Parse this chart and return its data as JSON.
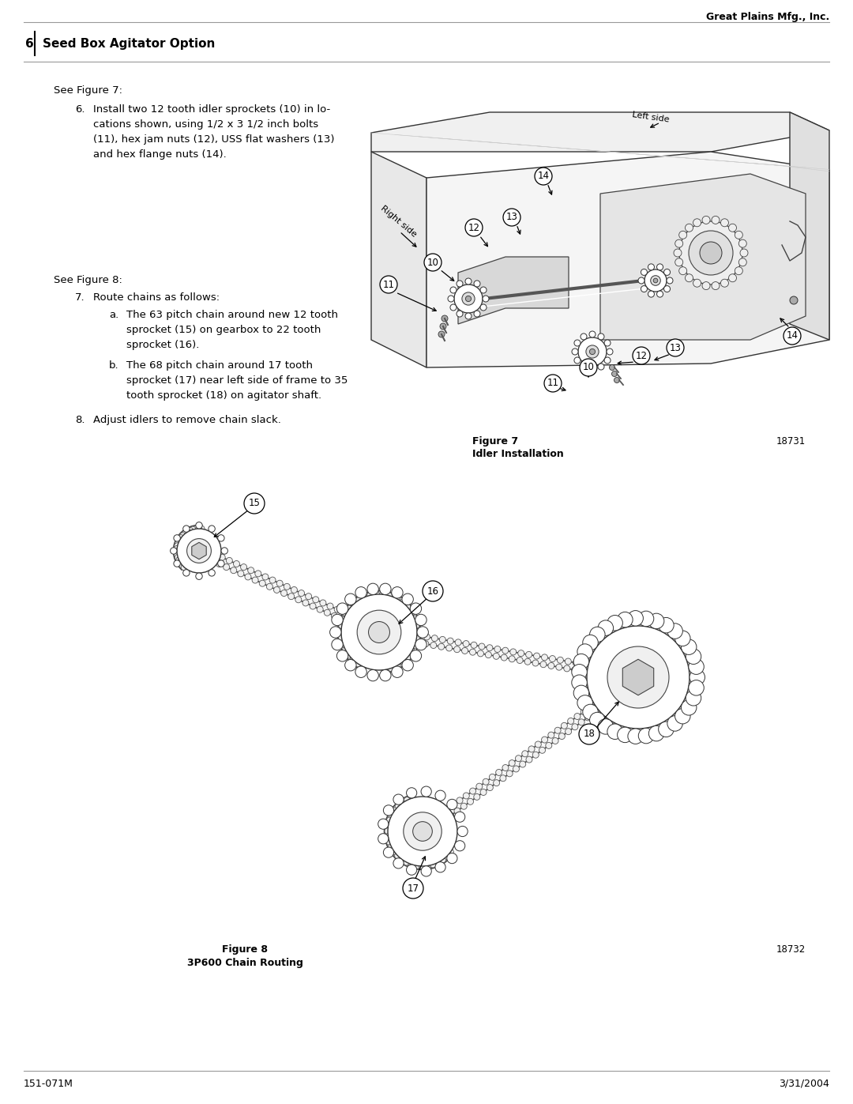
{
  "header_right": "Great Plains Mfg., Inc.",
  "page_num": "6",
  "section_title": "Seed Box Agitator Option",
  "footer_left": "151-071M",
  "footer_right": "3/31/2004",
  "fig7_caption_bold": "Figure 7",
  "fig7_caption_normal": "Idler Installation",
  "fig7_number": "18731",
  "fig8_caption_bold": "Figure 8",
  "fig8_caption_normal": "3P600 Chain Routing",
  "fig8_number": "18732",
  "text_see_fig7": "See Figure 7:",
  "text_step6_num": "6.",
  "text_step6": "Install two 12 tooth idler sprockets (10) in lo-\ncations shown, using 1/2 x 3 1/2 inch bolts\n(11), hex jam nuts (12), USS flat washers (13)\nand hex flange nuts (14).",
  "text_see_fig8": "See Figure 8:",
  "text_step7_num": "7.",
  "text_step7": "Route chains as follows:",
  "text_step7a_num": "a.",
  "text_step7a": "The 63 pitch chain around new 12 tooth\nsprocket (15) on gearbox to 22 tooth\nsprocket (16).",
  "text_step7b_num": "b.",
  "text_step7b": "The 68 pitch chain around 17 tooth\nsprocket (17) near left side of frame to 35\ntooth sprocket (18) on agitator shaft.",
  "text_step8_num": "8.",
  "text_step8": "Adjust idlers to remove chain slack.",
  "bg_color": "#ffffff",
  "text_color": "#000000",
  "gray_line": "#999999"
}
